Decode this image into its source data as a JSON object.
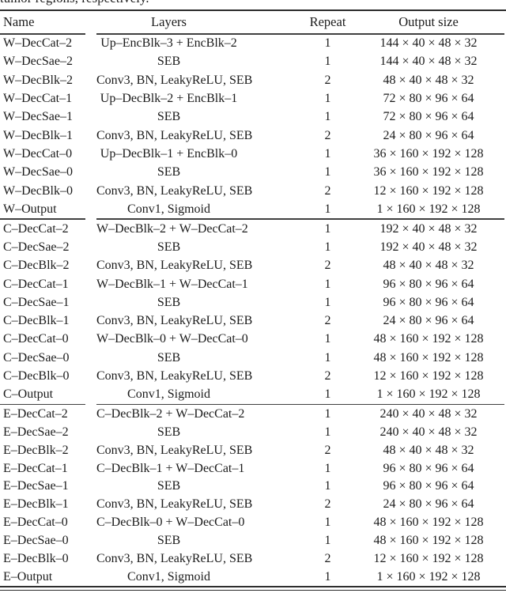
{
  "caption": {
    "fragment": "tumor regions, respectively."
  },
  "table": {
    "columns": [
      "Name",
      "Layers",
      "Repeat",
      "Output size"
    ],
    "sections": [
      {
        "rows": [
          {
            "name": "W–DecCat–2",
            "layers": "Up–EncBlk–3 + EncBlk–2",
            "repeat": "1",
            "output": "144 × 40 × 48 × 32"
          },
          {
            "name": "W–DecSae–2",
            "layers": "SEB",
            "repeat": "1",
            "output": "144 × 40 × 48 × 32"
          },
          {
            "name": "W–DecBlk–2",
            "layers": "Conv3, BN, LeakyReLU, SEB",
            "repeat": "2",
            "output": "48 × 40 × 48 × 32"
          },
          {
            "name": "W–DecCat–1",
            "layers": "Up–DecBlk–2 + EncBlk–1",
            "repeat": "1",
            "output": "72 × 80 × 96 × 64"
          },
          {
            "name": "W–DecSae–1",
            "layers": "SEB",
            "repeat": "1",
            "output": "72 × 80 × 96 × 64"
          },
          {
            "name": "W–DecBlk–1",
            "layers": "Conv3, BN, LeakyReLU, SEB",
            "repeat": "2",
            "output": "24 × 80 × 96 × 64"
          },
          {
            "name": "W–DecCat–0",
            "layers": "Up–DecBlk–1 + EncBlk–0",
            "repeat": "1",
            "output": "36 × 160 × 192 × 128"
          },
          {
            "name": "W–DecSae–0",
            "layers": "SEB",
            "repeat": "1",
            "output": "36 × 160 × 192 × 128"
          },
          {
            "name": "W–DecBlk–0",
            "layers": "Conv3, BN, LeakyReLU, SEB",
            "repeat": "2",
            "output": "12 × 160 × 192 × 128"
          },
          {
            "name": "W–Output",
            "layers": "Conv1, Sigmoid",
            "repeat": "1",
            "output": "1 × 160 × 192 × 128"
          }
        ]
      },
      {
        "rows": [
          {
            "name": "C–DecCat–2",
            "layers": "W–DecBlk–2 + W–DecCat–2",
            "repeat": "1",
            "output": "192 × 40 × 48 × 32"
          },
          {
            "name": "C–DecSae–2",
            "layers": "SEB",
            "repeat": "1",
            "output": "192 × 40 × 48 × 32"
          },
          {
            "name": "C–DecBlk–2",
            "layers": "Conv3, BN, LeakyReLU, SEB",
            "repeat": "2",
            "output": "48 × 40 × 48 × 32"
          },
          {
            "name": "C–DecCat–1",
            "layers": "W–DecBlk–1 + W–DecCat–1",
            "repeat": "1",
            "output": "96 × 80 × 96 × 64"
          },
          {
            "name": "C–DecSae–1",
            "layers": "SEB",
            "repeat": "1",
            "output": "96 × 80 × 96 × 64"
          },
          {
            "name": "C–DecBlk–1",
            "layers": "Conv3, BN, LeakyReLU, SEB",
            "repeat": "2",
            "output": "24 × 80 × 96 × 64"
          },
          {
            "name": "C–DecCat–0",
            "layers": "W–DecBlk–0 + W–DecCat–0",
            "repeat": "1",
            "output": "48 × 160 × 192 × 128"
          },
          {
            "name": "C–DecSae–0",
            "layers": "SEB",
            "repeat": "1",
            "output": "48 × 160 × 192 × 128"
          },
          {
            "name": "C–DecBlk–0",
            "layers": "Conv3, BN, LeakyReLU, SEB",
            "repeat": "2",
            "output": "12 × 160 × 192 × 128"
          },
          {
            "name": "C–Output",
            "layers": "Conv1, Sigmoid",
            "repeat": "1",
            "output": "1 × 160 × 192 × 128"
          }
        ]
      },
      {
        "rows": [
          {
            "name": "E–DecCat–2",
            "layers": "C–DecBlk–2 + W–DecCat–2",
            "repeat": "1",
            "output": "240 × 40 × 48 × 32"
          },
          {
            "name": "E–DecSae–2",
            "layers": "SEB",
            "repeat": "1",
            "output": "240 × 40 × 48 × 32"
          },
          {
            "name": "E–DecBlk–2",
            "layers": "Conv3, BN, LeakyReLU, SEB",
            "repeat": "2",
            "output": "48 × 40 × 48 × 32"
          },
          {
            "name": "E–DecCat–1",
            "layers": "C–DecBlk–1 + W–DecCat–1",
            "repeat": "1",
            "output": "96 × 80 × 96 × 64"
          },
          {
            "name": "E–DecSae–1",
            "layers": "SEB",
            "repeat": "1",
            "output": "96 × 80 × 96 × 64"
          },
          {
            "name": "E–DecBlk–1",
            "layers": "Conv3, BN, LeakyReLU, SEB",
            "repeat": "2",
            "output": "24 × 80 × 96 × 64"
          },
          {
            "name": "E–DecCat–0",
            "layers": "C–DecBlk–0 + W–DecCat–0",
            "repeat": "1",
            "output": "48 × 160 × 192 × 128"
          },
          {
            "name": "E–DecSae–0",
            "layers": "SEB",
            "repeat": "1",
            "output": "48 × 160 × 192 × 128"
          },
          {
            "name": "E–DecBlk–0",
            "layers": "Conv3, BN, LeakyReLU, SEB",
            "repeat": "2",
            "output": "12 × 160 × 192 × 128"
          },
          {
            "name": "E–Output",
            "layers": "Conv1, Sigmoid",
            "repeat": "1",
            "output": "1 × 160 × 192 × 128"
          }
        ]
      }
    ]
  }
}
